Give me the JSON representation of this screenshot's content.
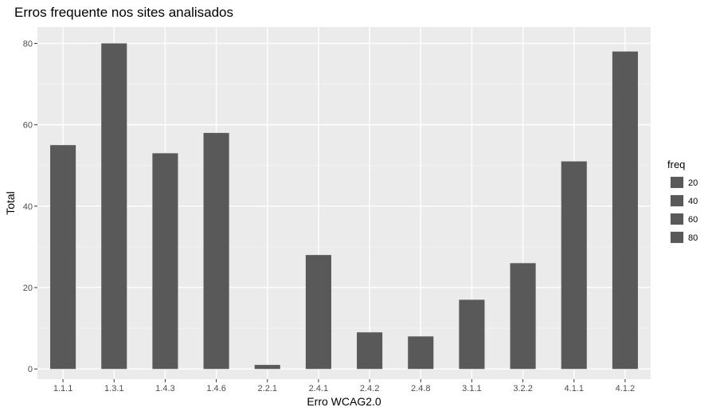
{
  "chart_data": {
    "type": "bar",
    "title": "Erros frequente nos sites analisados",
    "xlabel": "Erro WCAG2.0",
    "ylabel": "Total",
    "categories": [
      "1.1.1",
      "1.3.1",
      "1.4.3",
      "1.4.6",
      "2.2.1",
      "2.4.1",
      "2.4.2",
      "2.4.8",
      "3.1.1",
      "3.2.2",
      "4.1.1",
      "4.1.2"
    ],
    "values": [
      55,
      80,
      53,
      58,
      1,
      28,
      9,
      8,
      17,
      26,
      51,
      78
    ],
    "ylim": [
      -2.5,
      84
    ],
    "yticks": [
      0,
      20,
      40,
      60,
      80
    ],
    "grid": true,
    "bar_color": "#595959",
    "panel_background": "#ebebeb",
    "legend": {
      "title": "freq",
      "placement": "right",
      "entries": [
        "20",
        "40",
        "60",
        "80"
      ]
    }
  }
}
